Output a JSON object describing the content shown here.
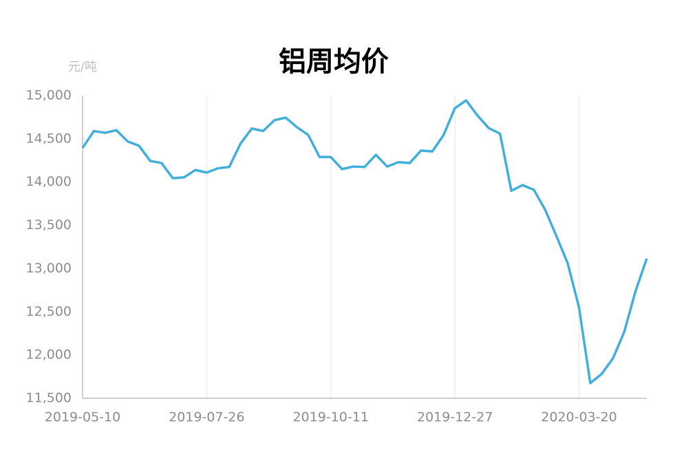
{
  "chart_data": {
    "type": "line",
    "title": "铝周均价",
    "y_unit": "元/吨",
    "categories": [
      "2019-05-10",
      null,
      null,
      null,
      null,
      null,
      null,
      null,
      null,
      null,
      null,
      "2019-07-26",
      null,
      null,
      null,
      null,
      null,
      null,
      null,
      null,
      null,
      null,
      "2019-10-11",
      null,
      null,
      null,
      null,
      null,
      null,
      null,
      null,
      null,
      null,
      "2019-12-27",
      null,
      null,
      null,
      null,
      null,
      null,
      null,
      null,
      null,
      null,
      "2020-03-20",
      null,
      null,
      null,
      null,
      null,
      null
    ],
    "series": [
      {
        "color": "#41aedc",
        "values": [
          14395,
          14590,
          14570,
          14600,
          14470,
          14420,
          14245,
          14220,
          14045,
          14055,
          14140,
          14110,
          14160,
          14175,
          14445,
          14620,
          14590,
          14715,
          14745,
          14635,
          14545,
          14290,
          14290,
          14150,
          14180,
          14175,
          14315,
          14180,
          14230,
          14220,
          14365,
          14355,
          14545,
          14855,
          14945,
          14770,
          14625,
          14560,
          13900,
          13965,
          13910,
          13680,
          13375,
          13060,
          12550,
          11675,
          11780,
          11960,
          12265,
          12735,
          13115
        ]
      }
    ],
    "ylim": [
      11500,
      15000
    ],
    "yticks": [
      {
        "value": 11500,
        "label": "11,500"
      },
      {
        "value": 12000,
        "label": "12,000"
      },
      {
        "value": 12500,
        "label": "12,500"
      },
      {
        "value": 13000,
        "label": "13,000"
      },
      {
        "value": 13500,
        "label": "13,500"
      },
      {
        "value": 14000,
        "label": "14,000"
      },
      {
        "value": 14500,
        "label": "14,500"
      },
      {
        "value": 15000,
        "label": "15,000"
      }
    ],
    "x_grid": true
  }
}
